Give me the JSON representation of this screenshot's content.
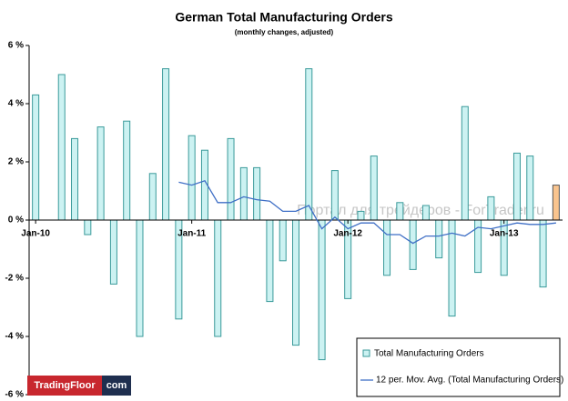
{
  "chart_data": {
    "type": "bar",
    "title": "German Total Manufacturing Orders",
    "subtitle": "(monthly changes, adjusted)",
    "categories": [
      "Jan-10",
      null,
      null,
      null,
      null,
      null,
      null,
      null,
      null,
      null,
      null,
      null,
      "Jan-11",
      null,
      null,
      null,
      null,
      null,
      null,
      null,
      null,
      null,
      null,
      null,
      "Jan-12",
      null,
      null,
      null,
      null,
      null,
      null,
      null,
      null,
      null,
      null,
      null,
      "Jan-13",
      null,
      null,
      null,
      null
    ],
    "series": [
      {
        "name": "Total Manufacturing Orders",
        "color": "#ccf2f2",
        "edge_color": "#3a9a9a",
        "highlight_color": "#f9c48e",
        "values": [
          4.3,
          0.0,
          5.0,
          2.8,
          -0.5,
          3.2,
          -2.2,
          3.4,
          -4.0,
          1.6,
          5.2,
          -3.4,
          2.9,
          2.4,
          -4.0,
          2.8,
          1.8,
          1.8,
          -2.8,
          -1.4,
          -4.3,
          5.2,
          -4.8,
          1.7,
          -2.7,
          0.3,
          2.2,
          -1.9,
          0.6,
          -1.7,
          0.5,
          -1.3,
          -3.3,
          3.9,
          -1.8,
          0.8,
          -1.9,
          2.3,
          2.2,
          -2.3,
          1.2
        ]
      },
      {
        "name": "12 per. Mov. Avg. (Total Manufacturing Orders)",
        "type": "line",
        "color": "#3f6fc6",
        "values": [
          null,
          null,
          null,
          null,
          null,
          null,
          null,
          null,
          null,
          null,
          null,
          1.3,
          1.2,
          1.35,
          0.6,
          0.6,
          0.8,
          0.7,
          0.65,
          0.3,
          0.3,
          0.5,
          -0.3,
          0.1,
          -0.3,
          -0.1,
          -0.1,
          -0.5,
          -0.5,
          -0.8,
          -0.55,
          -0.55,
          -0.45,
          -0.55,
          -0.25,
          -0.3,
          -0.2,
          -0.1,
          -0.15,
          -0.15,
          -0.1
        ]
      }
    ],
    "ylim": [
      -6,
      6
    ],
    "yticks": [
      {
        "value": 6,
        "label": "6 %"
      },
      {
        "value": 4,
        "label": "4 %"
      },
      {
        "value": 2,
        "label": "2 %"
      },
      {
        "value": 0,
        "label": "0 %"
      },
      {
        "value": -2,
        "label": "-2 %"
      },
      {
        "value": -4,
        "label": "-4 %"
      },
      {
        "value": -6,
        "label": "-6 %"
      }
    ],
    "legend": "bottom-right",
    "watermark": "Портал для трейдеров - ForTrader.ru",
    "logo": [
      "TradingFloor",
      "com"
    ]
  }
}
